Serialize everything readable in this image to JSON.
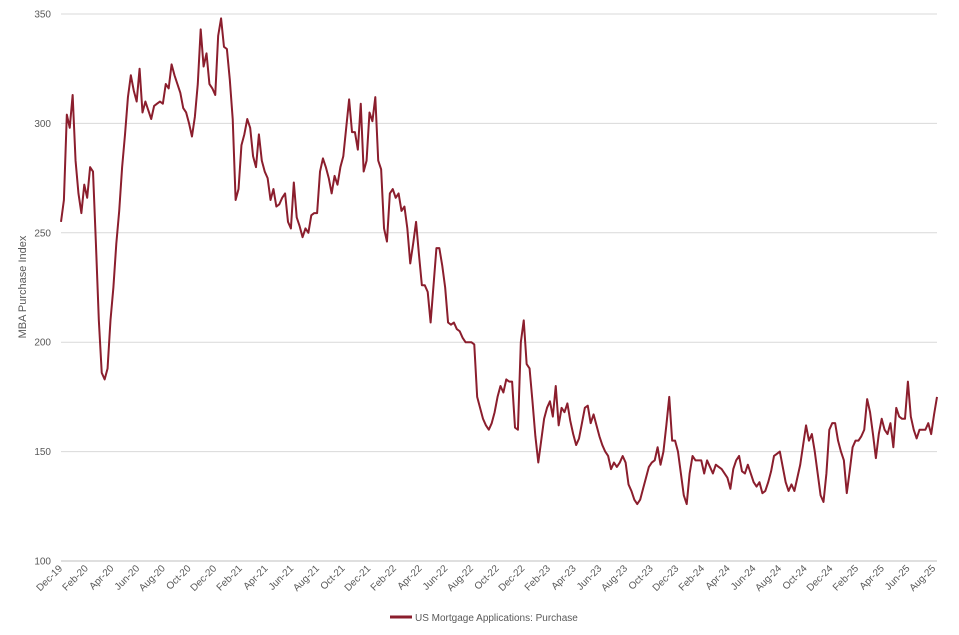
{
  "chart_data": {
    "type": "line",
    "title": "",
    "xlabel": "",
    "ylabel": "MBA Purchase Index",
    "ylim": [
      100,
      350
    ],
    "yticks": [
      100,
      150,
      200,
      250,
      300,
      350
    ],
    "grid": true,
    "legend_position": "bottom",
    "xtick_labels": [
      "Dec-19",
      "Feb-20",
      "Apr-20",
      "Jun-20",
      "Aug-20",
      "Oct-20",
      "Dec-20",
      "Feb-21",
      "Apr-21",
      "Jun-21",
      "Aug-21",
      "Oct-21",
      "Dec-21",
      "Feb-22",
      "Apr-22",
      "Jun-22",
      "Aug-22",
      "Oct-22",
      "Dec-22",
      "Feb-23",
      "Apr-23",
      "Jun-23",
      "Aug-23",
      "Oct-23",
      "Dec-23",
      "Feb-24",
      "Apr-24",
      "Jun-24",
      "Aug-24",
      "Oct-24",
      "Dec-24",
      "Feb-25",
      "Apr-25",
      "Jun-25",
      "Aug-25"
    ],
    "series": [
      {
        "name": "US Mortgage Applications: Purchase",
        "color": "#8B1E2D",
        "values": [
          255,
          265,
          304,
          298,
          313,
          283,
          268,
          259,
          272,
          266,
          280,
          278,
          245,
          210,
          186,
          183,
          188,
          210,
          225,
          245,
          260,
          280,
          295,
          312,
          322,
          315,
          310,
          325,
          305,
          310,
          306,
          302,
          308,
          309,
          310,
          309,
          318,
          316,
          327,
          322,
          318,
          314,
          307,
          305,
          300,
          294,
          303,
          318,
          343,
          326,
          332,
          318,
          316,
          313,
          340,
          348,
          335,
          334,
          320,
          302,
          265,
          270,
          290,
          295,
          302,
          298,
          285,
          280,
          295,
          283,
          278,
          275,
          265,
          270,
          262,
          263,
          266,
          268,
          255,
          252,
          273,
          257,
          253,
          248,
          252,
          250,
          258,
          259,
          259,
          278,
          284,
          280,
          275,
          268,
          276,
          272,
          280,
          285,
          298,
          311,
          296,
          296,
          288,
          309,
          278,
          283,
          305,
          301,
          312,
          283,
          279,
          252,
          246,
          268,
          270,
          266,
          268,
          260,
          262,
          252,
          236,
          245,
          255,
          240,
          226,
          226,
          223,
          209,
          226,
          243,
          243,
          235,
          225,
          209,
          208,
          209,
          206,
          205,
          202,
          200,
          200,
          200,
          199,
          175,
          170,
          165,
          162,
          160,
          163,
          168,
          175,
          180,
          177,
          183,
          182,
          182,
          161,
          160,
          200,
          210,
          190,
          188,
          173,
          157,
          145,
          155,
          165,
          170,
          173,
          166,
          180,
          162,
          170,
          168,
          172,
          164,
          158,
          153,
          156,
          163,
          170,
          171,
          163,
          167,
          162,
          157,
          153,
          150,
          148,
          142,
          145,
          143,
          145,
          148,
          145,
          135,
          132,
          128,
          126,
          128,
          133,
          138,
          143,
          145,
          146,
          152,
          144,
          150,
          162,
          175,
          155,
          155,
          150,
          140,
          130,
          126,
          140,
          148,
          146,
          146,
          146,
          140,
          146,
          143,
          140,
          144,
          143,
          142,
          140,
          138,
          133,
          142,
          146,
          148,
          141,
          140,
          144,
          140,
          136,
          134,
          136,
          131,
          132,
          136,
          141,
          148,
          149,
          150,
          143,
          136,
          132,
          135,
          132,
          138,
          144,
          153,
          162,
          155,
          158,
          150,
          140,
          130,
          127,
          140,
          160,
          163,
          163,
          155,
          150,
          146,
          131,
          141,
          152,
          155,
          155,
          157,
          160,
          174,
          168,
          158,
          147,
          158,
          165,
          160,
          158,
          163,
          152,
          170,
          166,
          165,
          165,
          182,
          166,
          160,
          156,
          160,
          160,
          160,
          163,
          158,
          167,
          175
        ]
      }
    ]
  }
}
